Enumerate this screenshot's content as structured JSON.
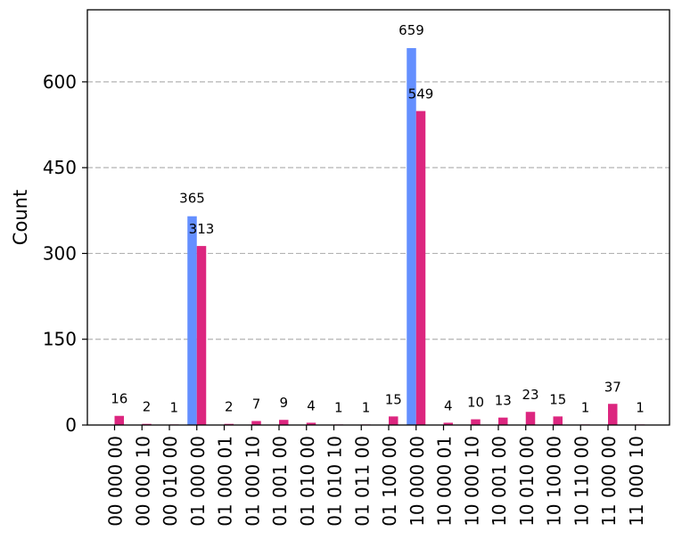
{
  "chart_data": {
    "type": "bar",
    "title": "",
    "xlabel": "",
    "ylabel": "Count",
    "ylim": [
      0,
      726
    ],
    "yticks": [
      0,
      150,
      300,
      450,
      600
    ],
    "grid": "horizontal-dashed",
    "legend": "none",
    "categories": [
      "00 000 00",
      "00 000 10",
      "00 010 00",
      "01 000 00",
      "01 000 01",
      "01 000 10",
      "01 001 00",
      "01 010 00",
      "01 010 10",
      "01 011 00",
      "01 100 00",
      "10 000 00",
      "10 000 01",
      "10 000 10",
      "10 001 00",
      "10 010 00",
      "10 100 00",
      "10 110 00",
      "11 000 00",
      "11 000 10"
    ],
    "series": [
      {
        "color": "#648FFF",
        "values": [
          0,
          0,
          0,
          365,
          0,
          0,
          0,
          0,
          0,
          0,
          0,
          659,
          0,
          0,
          0,
          0,
          0,
          0,
          0,
          0
        ]
      },
      {
        "color": "#DC267F",
        "values": [
          16,
          2,
          1,
          313,
          2,
          7,
          9,
          4,
          1,
          1,
          15,
          549,
          4,
          10,
          13,
          23,
          15,
          1,
          37,
          1
        ]
      }
    ]
  }
}
